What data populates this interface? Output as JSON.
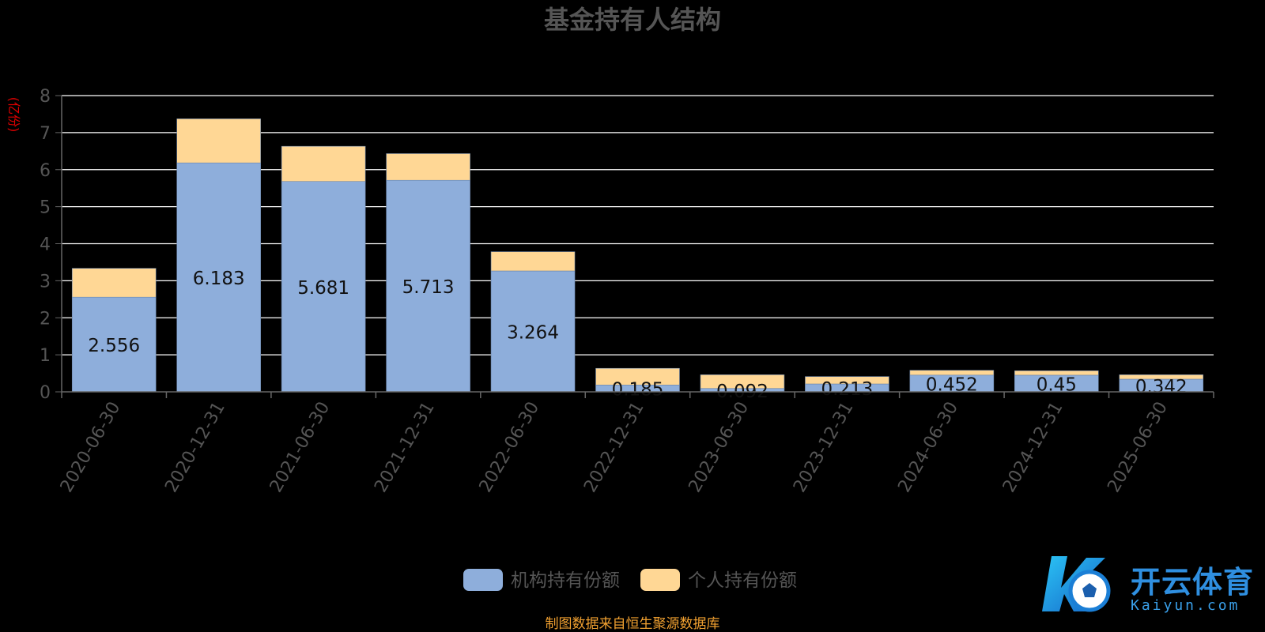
{
  "chart_data": {
    "type": "bar",
    "stacked": true,
    "title": "基金持有人结构",
    "ylabel": "(亿份)",
    "ylim": [
      0,
      8
    ],
    "yticks": [
      "0",
      "1",
      "2",
      "3",
      "4",
      "5",
      "6",
      "7",
      "8"
    ],
    "grid": true,
    "legend_position": "bottom-center",
    "categories": [
      "2020-06-30",
      "2020-12-31",
      "2021-06-30",
      "2021-12-31",
      "2022-06-30",
      "2022-12-31",
      "2023-06-30",
      "2023-12-31",
      "2024-06-30",
      "2024-12-31",
      "2025-06-30"
    ],
    "series": [
      {
        "name": "机构持有份额",
        "color": "#8eaedb",
        "values": [
          2.556,
          6.183,
          5.681,
          5.713,
          3.264,
          0.185,
          0.092,
          0.213,
          0.452,
          0.45,
          0.342
        ],
        "labels": [
          "2.556",
          "6.183",
          "5.681",
          "5.713",
          "3.264",
          "0.185",
          "0.092",
          "0.213",
          "0.452",
          "0.45",
          "0.342"
        ]
      },
      {
        "name": "个人持有份额",
        "color": "#ffd795",
        "values": [
          0.78,
          1.19,
          0.95,
          0.72,
          0.52,
          0.45,
          0.37,
          0.2,
          0.13,
          0.12,
          0.12
        ]
      }
    ],
    "source": "制图数据来自恒生聚源数据库"
  },
  "watermark": {
    "brand": "开云体育",
    "domain": "Kaiyun.com"
  },
  "colors": {
    "background": "#000000",
    "grid": "#ffffff",
    "axis_text": "#555555",
    "title": "#555555",
    "ylabel": "#e00000",
    "source": "#f0a030"
  }
}
